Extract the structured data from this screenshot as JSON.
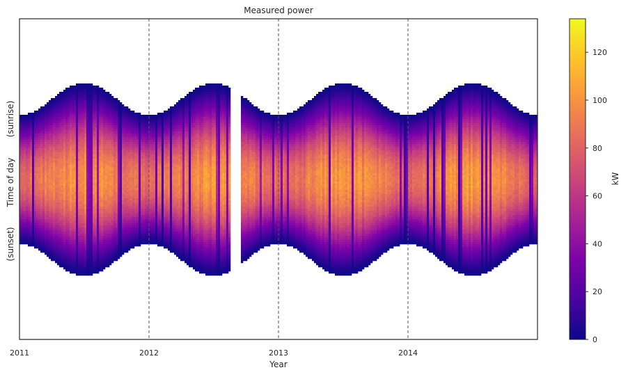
{
  "chart_data": {
    "type": "heatmap",
    "title": "Measured power",
    "xlabel": "Year",
    "ylabel": "Time of day",
    "y_annotations": {
      "top": "(sunrise)",
      "bottom": "(sunset)"
    },
    "x_ticks": [
      "2011",
      "2012",
      "2013",
      "2014"
    ],
    "x_tick_values": [
      2011,
      2012,
      2013,
      2014
    ],
    "xlim": [
      2011,
      2015
    ],
    "vlines": [
      2012,
      2013,
      2014
    ],
    "gaps": [
      [
        2012.63,
        2012.71
      ]
    ],
    "daylight_fraction": {
      "winter_min": 0.4,
      "summer_max": 0.6,
      "winter_center": [
        2011.0,
        2012.0,
        2013.0,
        2014.0,
        2015.0
      ]
    },
    "colorbar": {
      "label": "kW",
      "colormap": "plasma",
      "vmin": 0,
      "vmax": 134,
      "ticks": [
        "0",
        "20",
        "40",
        "60",
        "80",
        "100",
        "120"
      ],
      "tick_values": [
        0,
        20,
        40,
        60,
        80,
        100,
        120
      ]
    },
    "peak_power_kW": {
      "summer": 115,
      "winter": 95
    }
  }
}
